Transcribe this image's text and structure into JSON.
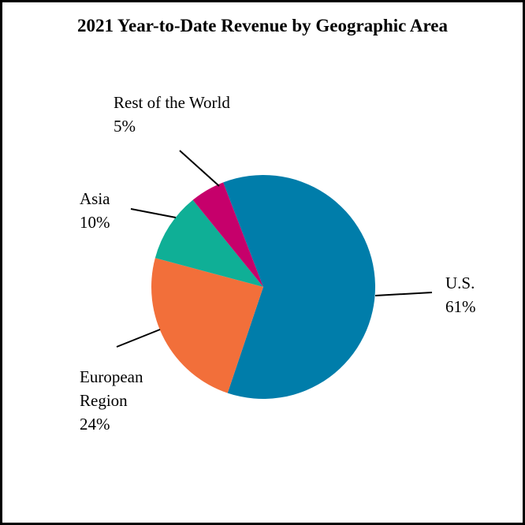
{
  "chart_data": {
    "type": "pie",
    "title": "2021 Year-to-Date Revenue by Geographic Area",
    "slices": [
      {
        "label": "U.S.",
        "value": 61,
        "value_label": "61%",
        "color": "#007DAA"
      },
      {
        "label": "European Region",
        "label_lines": [
          "European",
          "Region"
        ],
        "value": 24,
        "value_label": "24%",
        "color": "#F26F3A"
      },
      {
        "label": "Asia",
        "value": 10,
        "value_label": "10%",
        "color": "#0FAF96"
      },
      {
        "label": "Rest of the World",
        "value": 5,
        "value_label": "5%",
        "color": "#C6006B"
      }
    ],
    "legend": "none",
    "labels": "outside with leader lines"
  }
}
